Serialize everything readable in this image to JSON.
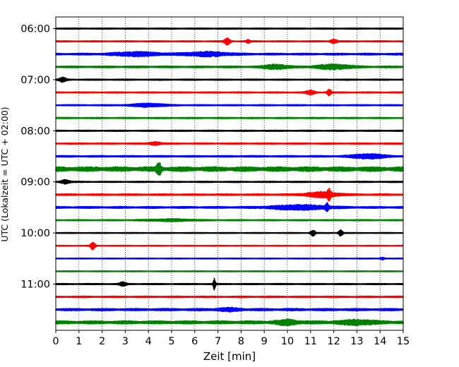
{
  "chart_data": {
    "type": "line",
    "title": "",
    "xlabel": "Zeit  [min]",
    "ylabel": "UTC (Lokalzeit = UTC + 02:00)",
    "xlim": [
      0,
      15
    ],
    "x_ticks": [
      0,
      1,
      2,
      3,
      4,
      5,
      6,
      7,
      8,
      9,
      10,
      11,
      12,
      13,
      14,
      15
    ],
    "y_tick_labels": [
      "06:00",
      "07:00",
      "08:00",
      "09:00",
      "10:00",
      "11:00"
    ],
    "grid": "vertical dotted",
    "trace_interval_minutes": 15,
    "traces": [
      {
        "start": "06:00",
        "color": "#000000",
        "noise": 0.08,
        "events": []
      },
      {
        "start": "06:15",
        "color": "#ff0000",
        "noise": 0.08,
        "events": [
          [
            7.4,
            0.25,
            0.55
          ],
          [
            8.3,
            0.15,
            0.25
          ],
          [
            12.0,
            0.3,
            0.3
          ]
        ]
      },
      {
        "start": "06:30",
        "color": "#0000ff",
        "noise": 0.12,
        "events": [
          [
            3.5,
            2.0,
            0.3
          ],
          [
            6.5,
            2.0,
            0.3
          ]
        ]
      },
      {
        "start": "06:45",
        "color": "#008000",
        "noise": 0.12,
        "events": [
          [
            9.5,
            1.0,
            0.35
          ],
          [
            12.0,
            1.5,
            0.35
          ]
        ]
      },
      {
        "start": "07:00",
        "color": "#000000",
        "noise": 0.08,
        "events": [
          [
            0.3,
            0.3,
            0.35
          ]
        ]
      },
      {
        "start": "07:15",
        "color": "#ff0000",
        "noise": 0.08,
        "events": [
          [
            11.0,
            0.4,
            0.3
          ],
          [
            11.8,
            0.2,
            0.45
          ]
        ]
      },
      {
        "start": "07:30",
        "color": "#0000ff",
        "noise": 0.08,
        "events": [
          [
            4.0,
            1.5,
            0.25
          ]
        ]
      },
      {
        "start": "07:45",
        "color": "#008000",
        "noise": 0.08,
        "events": []
      },
      {
        "start": "08:00",
        "color": "#000000",
        "noise": 0.08,
        "events": []
      },
      {
        "start": "08:15",
        "color": "#ff0000",
        "noise": 0.08,
        "events": [
          [
            4.3,
            0.5,
            0.25
          ]
        ]
      },
      {
        "start": "08:30",
        "color": "#0000ff",
        "noise": 0.1,
        "events": [
          [
            13.5,
            1.5,
            0.35
          ]
        ]
      },
      {
        "start": "08:45",
        "color": "#008000",
        "noise": 0.3,
        "events": [
          [
            4.45,
            0.2,
            0.9
          ]
        ]
      },
      {
        "start": "09:00",
        "color": "#000000",
        "noise": 0.08,
        "events": [
          [
            0.4,
            0.4,
            0.3
          ]
        ]
      },
      {
        "start": "09:15",
        "color": "#ff0000",
        "noise": 0.1,
        "events": [
          [
            11.5,
            1.5,
            0.4
          ],
          [
            11.8,
            0.15,
            0.6
          ]
        ]
      },
      {
        "start": "09:30",
        "color": "#0000ff",
        "noise": 0.12,
        "events": [
          [
            10.5,
            2.5,
            0.35
          ],
          [
            11.7,
            0.15,
            0.6
          ]
        ]
      },
      {
        "start": "09:45",
        "color": "#008000",
        "noise": 0.08,
        "events": [
          [
            5.0,
            2.0,
            0.15
          ]
        ]
      },
      {
        "start": "10:00",
        "color": "#000000",
        "noise": 0.06,
        "events": [
          [
            11.1,
            0.2,
            0.45
          ],
          [
            12.3,
            0.2,
            0.45
          ]
        ]
      },
      {
        "start": "10:15",
        "color": "#ff0000",
        "noise": 0.06,
        "events": [
          [
            1.6,
            0.2,
            0.6
          ]
        ]
      },
      {
        "start": "10:30",
        "color": "#0000ff",
        "noise": 0.06,
        "events": [
          [
            14.1,
            0.2,
            0.2
          ]
        ]
      },
      {
        "start": "10:45",
        "color": "#008000",
        "noise": 0.06,
        "events": []
      },
      {
        "start": "11:00",
        "color": "#000000",
        "noise": 0.08,
        "events": [
          [
            2.9,
            0.3,
            0.3
          ],
          [
            6.85,
            0.1,
            0.9
          ]
        ]
      },
      {
        "start": "11:15",
        "color": "#ff0000",
        "noise": 0.1,
        "events": []
      },
      {
        "start": "11:30",
        "color": "#0000ff",
        "noise": 0.15,
        "events": [
          [
            7.5,
            1.0,
            0.2
          ]
        ]
      },
      {
        "start": "11:45",
        "color": "#008000",
        "noise": 0.2,
        "events": [
          [
            10.0,
            1.0,
            0.3
          ],
          [
            13.0,
            1.5,
            0.3
          ]
        ]
      }
    ]
  }
}
